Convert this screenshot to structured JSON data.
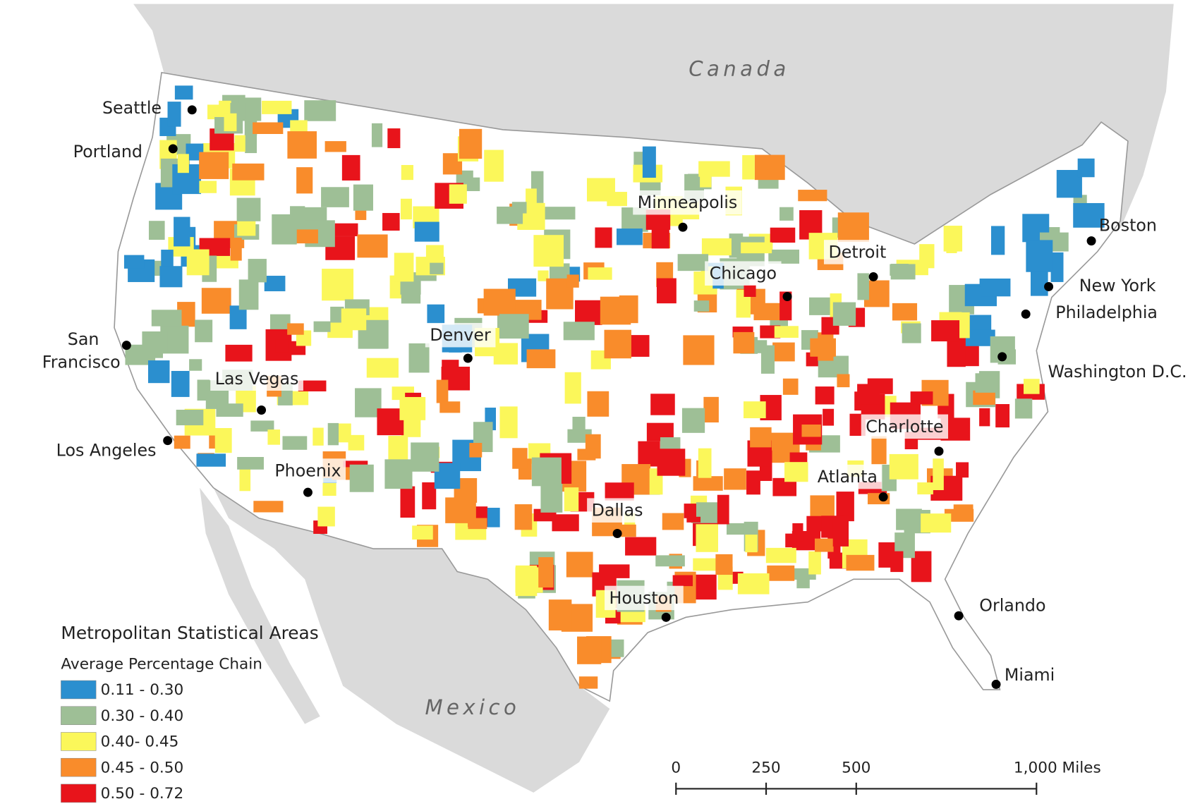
{
  "map": {
    "countries": [
      "Canada",
      "Mexico"
    ],
    "cities": [
      "Seattle",
      "Portland",
      "San Francisco",
      "Los Angeles",
      "Las Vegas",
      "Phoenix",
      "Denver",
      "Minneapolis",
      "Chicago",
      "Detroit",
      "Dallas",
      "Houston",
      "Atlanta",
      "Charlotte",
      "Boston",
      "New York",
      "Philadelphia",
      "Washington D.C.",
      "Orlando",
      "Miami"
    ],
    "legend": {
      "title": "Metropolitan Statistical Areas",
      "subtitle": "Average Percentage Chain",
      "items": [
        {
          "label": "0.11 - 0.30",
          "color": "#2b8fcf"
        },
        {
          "label": "0.30 - 0.40",
          "color": "#9ebf96"
        },
        {
          "label": "0.40- 0.45",
          "color": "#fbf75a"
        },
        {
          "label": "0.45 - 0.50",
          "color": "#f98c2b"
        },
        {
          "label": "0.50 - 0.72",
          "color": "#e8141b"
        }
      ]
    },
    "scale_bar": {
      "ticks": [
        0,
        250,
        500,
        {
          "value": 1000,
          "label": "1,000 Miles"
        }
      ]
    }
  }
}
